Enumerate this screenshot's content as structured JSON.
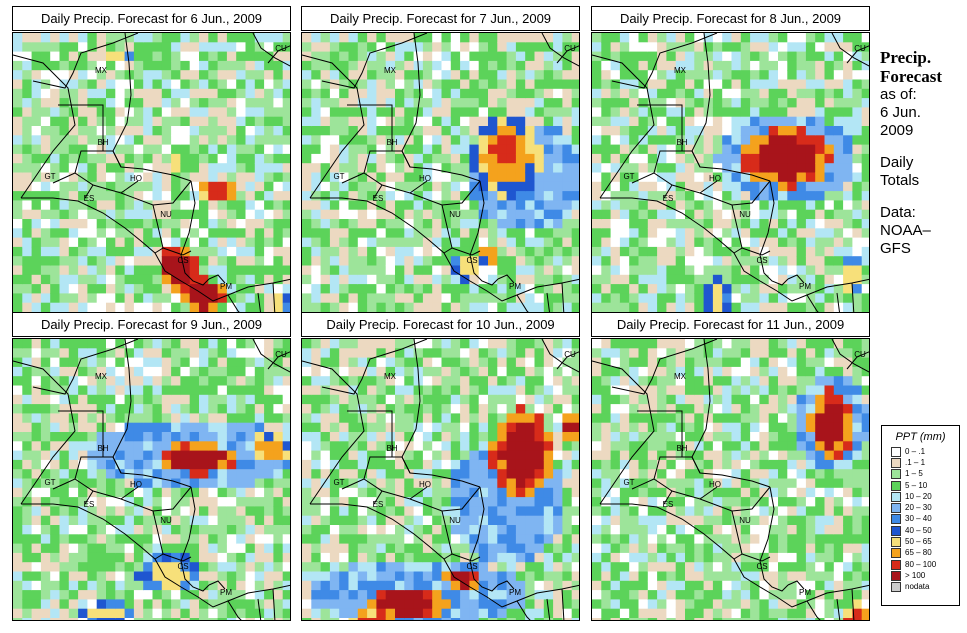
{
  "panels": [
    {
      "title": "Daily Precip. Forecast for  6 Jun., 2009",
      "heavy": [
        {
          "cx": 200,
          "cy": 155,
          "rx": 22,
          "ry": 12,
          "lvl": 3
        },
        {
          "cx": 160,
          "cy": 230,
          "rx": 20,
          "ry": 22,
          "lvl": 4
        },
        {
          "cx": 185,
          "cy": 258,
          "rx": 22,
          "ry": 18,
          "lvl": 4
        },
        {
          "cx": 182,
          "cy": 288,
          "rx": 22,
          "ry": 12,
          "lvl": 3
        },
        {
          "cx": 158,
          "cy": 125,
          "rx": 8,
          "ry": 8,
          "lvl": 1
        },
        {
          "cx": 100,
          "cy": 20,
          "rx": 12,
          "ry": 8,
          "lvl": 1
        },
        {
          "cx": 262,
          "cy": 270,
          "rx": 10,
          "ry": 18,
          "lvl": 1
        }
      ]
    },
    {
      "title": "Daily Precip. Forecast for  7 Jun., 2009",
      "heavy": [
        {
          "cx": 200,
          "cy": 120,
          "rx": 35,
          "ry": 40,
          "lvl": 2
        },
        {
          "cx": 197,
          "cy": 112,
          "rx": 18,
          "ry": 22,
          "lvl": 3
        },
        {
          "cx": 182,
          "cy": 218,
          "rx": 10,
          "ry": 12,
          "lvl": 2
        },
        {
          "cx": 160,
          "cy": 228,
          "rx": 14,
          "ry": 14,
          "lvl": 1
        },
        {
          "cx": 220,
          "cy": 140,
          "rx": 60,
          "ry": 55,
          "lvl": 0
        }
      ]
    },
    {
      "title": "Daily Precip. Forecast for  8 Jun., 2009",
      "heavy": [
        {
          "cx": 190,
          "cy": 120,
          "rx": 45,
          "ry": 30,
          "lvl": 4
        },
        {
          "cx": 190,
          "cy": 120,
          "rx": 70,
          "ry": 45,
          "lvl": 0
        },
        {
          "cx": 120,
          "cy": 260,
          "rx": 12,
          "ry": 20,
          "lvl": 1
        },
        {
          "cx": 255,
          "cy": 240,
          "rx": 12,
          "ry": 20,
          "lvl": 1
        }
      ]
    },
    {
      "title": "Daily Precip. Forecast for  9 Jun., 2009",
      "heavy": [
        {
          "cx": 180,
          "cy": 115,
          "rx": 40,
          "ry": 16,
          "lvl": 4
        },
        {
          "cx": 255,
          "cy": 105,
          "rx": 22,
          "ry": 16,
          "lvl": 2
        },
        {
          "cx": 175,
          "cy": 110,
          "rx": 110,
          "ry": 35,
          "lvl": 0
        },
        {
          "cx": 150,
          "cy": 230,
          "rx": 30,
          "ry": 20,
          "lvl": 1
        },
        {
          "cx": 90,
          "cy": 270,
          "rx": 25,
          "ry": 12,
          "lvl": 1
        }
      ]
    },
    {
      "title": "Daily Precip. Forecast for  10 Jun., 2009",
      "heavy": [
        {
          "cx": 215,
          "cy": 110,
          "rx": 30,
          "ry": 45,
          "lvl": 4
        },
        {
          "cx": 265,
          "cy": 85,
          "rx": 12,
          "ry": 14,
          "lvl": 4
        },
        {
          "cx": 100,
          "cy": 260,
          "rx": 40,
          "ry": 18,
          "lvl": 4
        },
        {
          "cx": 65,
          "cy": 278,
          "rx": 20,
          "ry": 10,
          "lvl": 3
        },
        {
          "cx": 155,
          "cy": 235,
          "rx": 16,
          "ry": 12,
          "lvl": 4
        },
        {
          "cx": 200,
          "cy": 160,
          "rx": 60,
          "ry": 60,
          "lvl": 0
        },
        {
          "cx": 110,
          "cy": 250,
          "rx": 110,
          "ry": 35,
          "lvl": 0
        }
      ]
    },
    {
      "title": "Daily Precip. Forecast for  11 Jun., 2009",
      "heavy": [
        {
          "cx": 235,
          "cy": 80,
          "rx": 22,
          "ry": 35,
          "lvl": 4
        },
        {
          "cx": 235,
          "cy": 80,
          "rx": 38,
          "ry": 50,
          "lvl": 0
        },
        {
          "cx": 260,
          "cy": 275,
          "rx": 15,
          "ry": 15,
          "lvl": 3
        }
      ]
    }
  ],
  "countries": [
    "MX",
    "BH",
    "GT",
    "HO",
    "ES",
    "NU",
    "CS",
    "PM",
    "CU"
  ],
  "side": {
    "title_line1": "Precip.",
    "title_line2": "Forecast",
    "asof_label": "as of:",
    "asof_date_line1": "6 Jun.",
    "asof_date_line2": "2009",
    "daily_line1": "Daily",
    "daily_line2": "Totals",
    "data_line1": "Data:",
    "data_line2": "NOAA–",
    "data_line3": "GFS"
  },
  "legend": {
    "title": "PPT (mm)",
    "entries": [
      {
        "label": "0 – .1",
        "color": "#ffffff"
      },
      {
        "label": ".1 – 1",
        "color": "#ecd9c1"
      },
      {
        "label": "1 – 5",
        "color": "#9de49a"
      },
      {
        "label": "5 – 10",
        "color": "#5cd35a"
      },
      {
        "label": "10 – 20",
        "color": "#b3e6f5"
      },
      {
        "label": "20 – 30",
        "color": "#7fb5f2"
      },
      {
        "label": "30 – 40",
        "color": "#3f8ae6"
      },
      {
        "label": "40 – 50",
        "color": "#1f56d0"
      },
      {
        "label": "50 – 65",
        "color": "#f7e07a"
      },
      {
        "label": "65 – 80",
        "color": "#f4a21d"
      },
      {
        "label": "80 – 100",
        "color": "#d72b1a"
      },
      {
        "label": "> 100",
        "color": "#a8141b"
      },
      {
        "label": "nodata",
        "color": "#cccccc"
      }
    ]
  }
}
